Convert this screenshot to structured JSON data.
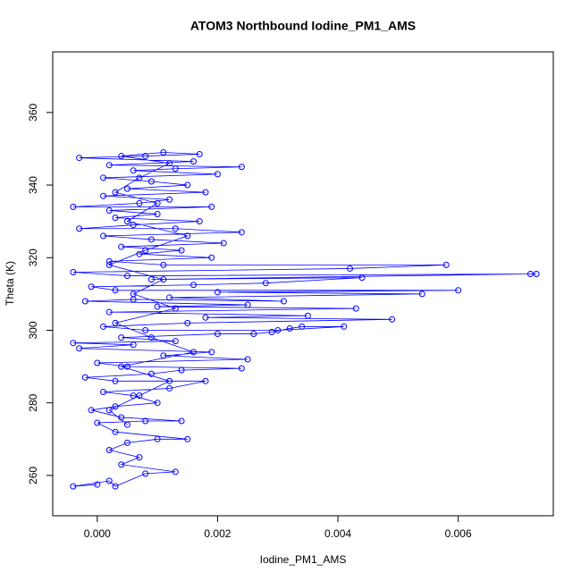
{
  "chart_data": {
    "type": "line",
    "markers": true,
    "color": "#0000ff",
    "title": "ATOM3 Northbound Iodine_PM1_AMS",
    "xlabel": "Iodine_PM1_AMS",
    "ylabel": "Theta (K)",
    "xlim": [
      -0.00074,
      0.00758
    ],
    "ylim": [
      248.9,
      376.7
    ],
    "xticks": [
      {
        "value": 0,
        "label": "0.000"
      },
      {
        "value": 0.002,
        "label": "0.002"
      },
      {
        "value": 0.004,
        "label": "0.004"
      },
      {
        "value": 0.006,
        "label": "0.006"
      }
    ],
    "yticks": [
      260,
      280,
      300,
      320,
      340,
      360
    ],
    "x": [
      0.0,
      -0.0004,
      0.0002,
      0.0003,
      0.0008,
      0.0013,
      0.0004,
      0.0007,
      0.0002,
      0.0005,
      0.001,
      0.0015,
      0.0003,
      0.0,
      0.0008,
      0.0014,
      0.0004,
      -0.0001,
      0.0003,
      0.001,
      0.0006,
      0.0001,
      0.0012,
      0.0018,
      0.0003,
      -0.0002,
      0.0009,
      0.0014,
      0.0024,
      0.0005,
      0.0,
      0.0025,
      0.0011,
      0.0019,
      -0.0003,
      0.0006,
      -0.0004,
      0.0013,
      0.0004,
      0.002,
      0.0026,
      0.0029,
      0.0032,
      0.0034,
      0.0041,
      0.003,
      0.0008,
      0.0001,
      0.0015,
      0.0049,
      0.0018,
      0.0035,
      0.0002,
      0.0043,
      0.001,
      0.0025,
      -0.0002,
      0.0006,
      0.0031,
      0.0012,
      0.0054,
      0.002,
      0.006,
      0.0003,
      -0.0001,
      0.0016,
      0.0028,
      0.0044,
      0.0009,
      0.0072,
      0.0073,
      0.0005,
      -0.0004,
      0.0042,
      0.0058,
      0.0011,
      0.0002,
      0.0019,
      0.0007,
      0.0014,
      0.0004,
      0.0021,
      0.0009,
      0.0001,
      0.0024,
      0.0013,
      -0.0003,
      0.0006,
      0.0017,
      0.0003,
      0.001,
      0.0002,
      0.0019,
      -0.0004,
      0.0007,
      0.0012,
      0.0001,
      0.0018,
      0.0005,
      0.0015,
      0.0009,
      0.0001,
      0.002,
      0.0006,
      0.0013,
      0.0024,
      0.0002,
      0.0016,
      -0.0003,
      0.0008,
      0.0017,
      0.0011,
      0.0004,
      0.0012,
      0.0007,
      0.0003,
      0.001,
      0.0005,
      0.0015,
      0.0008,
      0.0002,
      0.0011,
      0.0006,
      0.0013,
      0.0003,
      0.0009,
      0.0016,
      0.0004,
      0.0012,
      0.0007,
      0.0002,
      0.0005
    ],
    "values": [
      257.5,
      257,
      258.5,
      257,
      260.5,
      261,
      263,
      265,
      267,
      269,
      270,
      270,
      272,
      274.5,
      275,
      275,
      276,
      278,
      279,
      280,
      282,
      283,
      284,
      286,
      286,
      287,
      288,
      289,
      289.5,
      290,
      291,
      292,
      293,
      294,
      295,
      296,
      296.5,
      297,
      298,
      299,
      299,
      299.5,
      300.5,
      301,
      301,
      300,
      300,
      301,
      302,
      303,
      303.5,
      304,
      305,
      306,
      306.5,
      307,
      308,
      308.5,
      308,
      309,
      310,
      310.5,
      311,
      311,
      312,
      312.5,
      313,
      314.5,
      314,
      315.5,
      315.5,
      315,
      316,
      317,
      318,
      318,
      319,
      320,
      321,
      322,
      323,
      324,
      325,
      326,
      327,
      328,
      328,
      329,
      330,
      331,
      332,
      333,
      334,
      334,
      335,
      336,
      337,
      338,
      339,
      340,
      341,
      342,
      343,
      344,
      344.5,
      345,
      345.5,
      346.5,
      347.5,
      348,
      348.5,
      349,
      348,
      346,
      342,
      338,
      335,
      330,
      326,
      322,
      318,
      314,
      310,
      306,
      302,
      298,
      294,
      290,
      286,
      282,
      278,
      274
    ]
  }
}
